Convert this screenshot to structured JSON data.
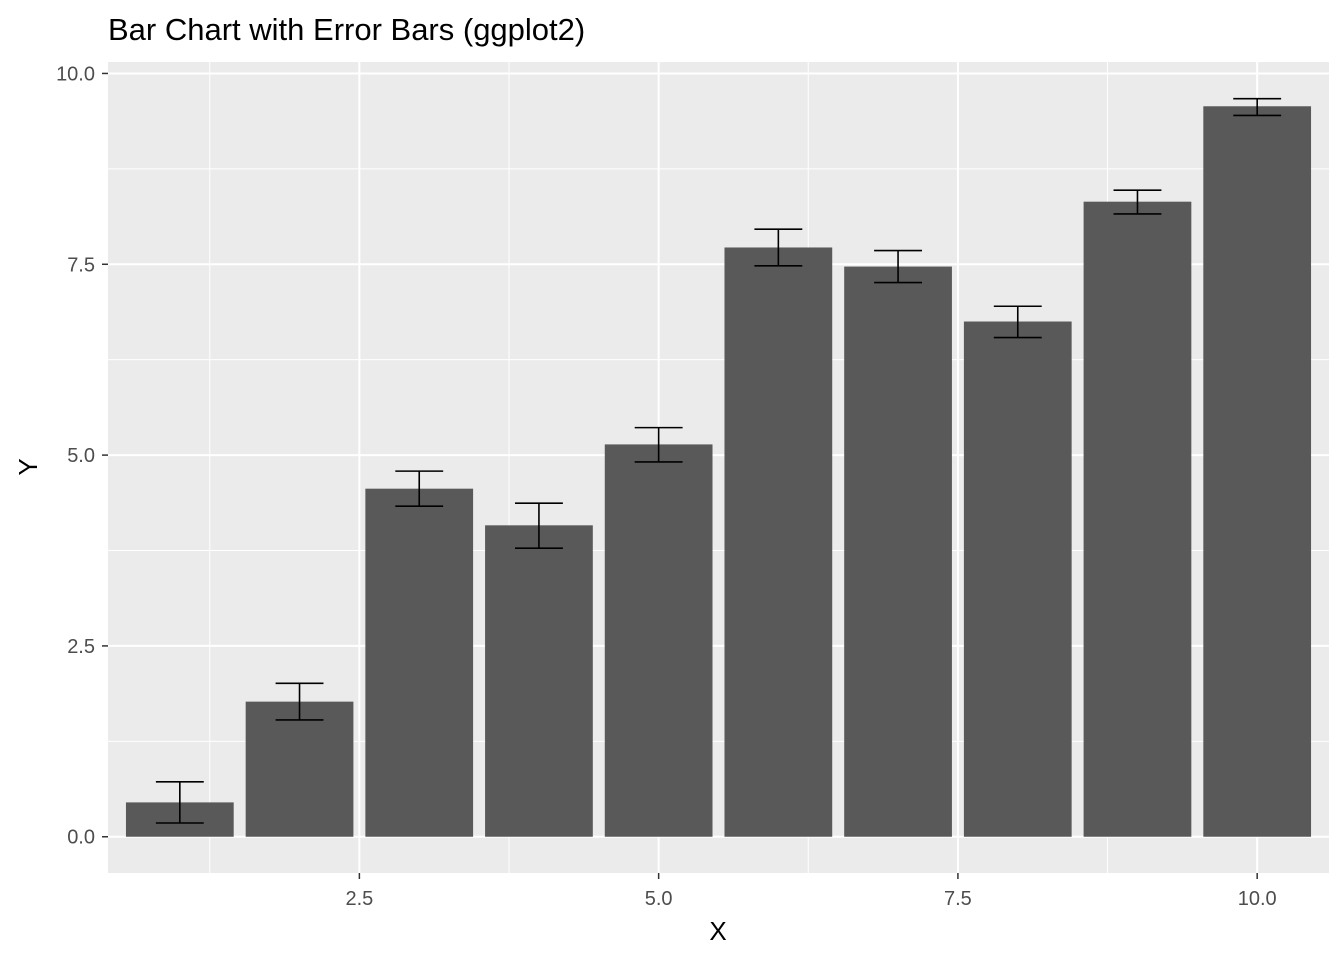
{
  "chart_data": {
    "type": "bar",
    "title": "Bar Chart with Error Bars (ggplot2)",
    "xlabel": "X",
    "ylabel": "Y",
    "x": [
      1,
      2,
      3,
      4,
      5,
      6,
      7,
      8,
      9,
      10
    ],
    "values": [
      0.45,
      1.77,
      4.56,
      4.08,
      5.14,
      7.72,
      7.47,
      6.75,
      8.32,
      9.57
    ],
    "error_lower": [
      0.18,
      1.53,
      4.33,
      3.78,
      4.91,
      7.48,
      7.26,
      6.54,
      8.16,
      9.45
    ],
    "error_upper": [
      0.72,
      2.01,
      4.79,
      4.37,
      5.36,
      7.96,
      7.68,
      6.95,
      8.47,
      9.67
    ],
    "xlim": [
      0.4,
      10.6
    ],
    "ylim": [
      -0.475,
      10.15
    ],
    "x_ticks": [
      2.5,
      5.0,
      7.5,
      10.0
    ],
    "x_tick_labels": [
      "2.5",
      "5.0",
      "7.5",
      "10.0"
    ],
    "y_ticks": [
      0.0,
      2.5,
      5.0,
      7.5,
      10.0
    ],
    "y_tick_labels": [
      "0.0",
      "2.5",
      "5.0",
      "7.5",
      "10.0"
    ],
    "grid": true,
    "colors": {
      "bar": "#595959",
      "panel": "#ebebeb",
      "grid": "#ffffff",
      "error_bar": "#000000"
    }
  }
}
